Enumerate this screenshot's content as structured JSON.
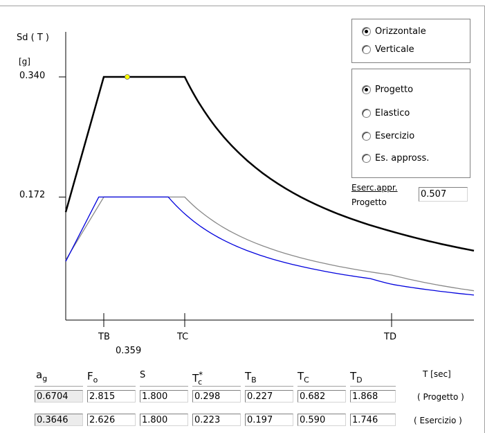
{
  "chart_data": {
    "type": "line",
    "ylabel": "Sd ( T )",
    "yunit": "[g]",
    "ytick_values": [
      "0.340",
      "0.172"
    ],
    "xtick_labels": [
      "TB",
      "TC",
      "TD"
    ],
    "tb_value_label": "0.359",
    "series": [
      {
        "color": "#000000",
        "points": [
          [
            0.0,
            0.151
          ],
          [
            0.227,
            0.34
          ],
          [
            0.682,
            0.34
          ],
          [
            1.0,
            0.232
          ],
          [
            1.868,
            0.124
          ],
          [
            2.2,
            0.097
          ]
        ]
      },
      {
        "color": "#888888",
        "points": [
          [
            0.0,
            0.084
          ],
          [
            0.227,
            0.172
          ],
          [
            0.682,
            0.172
          ],
          [
            1.0,
            0.117
          ],
          [
            1.868,
            0.063
          ],
          [
            2.2,
            0.041
          ]
        ]
      },
      {
        "color": "#0000dd",
        "points": [
          [
            0.0,
            0.082
          ],
          [
            0.197,
            0.172
          ],
          [
            0.59,
            0.172
          ],
          [
            1.0,
            0.101
          ],
          [
            1.746,
            0.058
          ],
          [
            2.2,
            0.035
          ]
        ]
      }
    ],
    "marker": {
      "x": 0.359,
      "y": 0.34,
      "color": "#ffff00"
    }
  },
  "direction": {
    "options": [
      {
        "label": "Orizzontale",
        "selected": true
      },
      {
        "label": "Verticale",
        "selected": false
      }
    ]
  },
  "spectrum": {
    "options": [
      {
        "label": "Progetto",
        "selected": true
      },
      {
        "label": "Elastico",
        "selected": false
      },
      {
        "label": "Esercizio",
        "selected": false
      },
      {
        "label": "Es. appross.",
        "selected": false
      }
    ]
  },
  "ratio": {
    "label_top": "Eserc.appr.",
    "label_bottom": "Progetto",
    "value": "0.507"
  },
  "params": {
    "headers": [
      "a",
      "F",
      "S",
      "T",
      "T",
      "T",
      "T"
    ],
    "subs": [
      "g",
      "o",
      "",
      "c",
      "B",
      "C",
      "D"
    ],
    "sup_star": "*",
    "unit": "T [sec]",
    "rows": [
      {
        "values": [
          "0.6704",
          "2.815",
          "1.800",
          "0.298",
          "0.227",
          "0.682",
          "1.868"
        ],
        "label": "( Progetto )"
      },
      {
        "values": [
          "0.3646",
          "2.626",
          "1.800",
          "0.223",
          "0.197",
          "0.590",
          "1.746"
        ],
        "label": "( Esercizio )"
      }
    ]
  }
}
